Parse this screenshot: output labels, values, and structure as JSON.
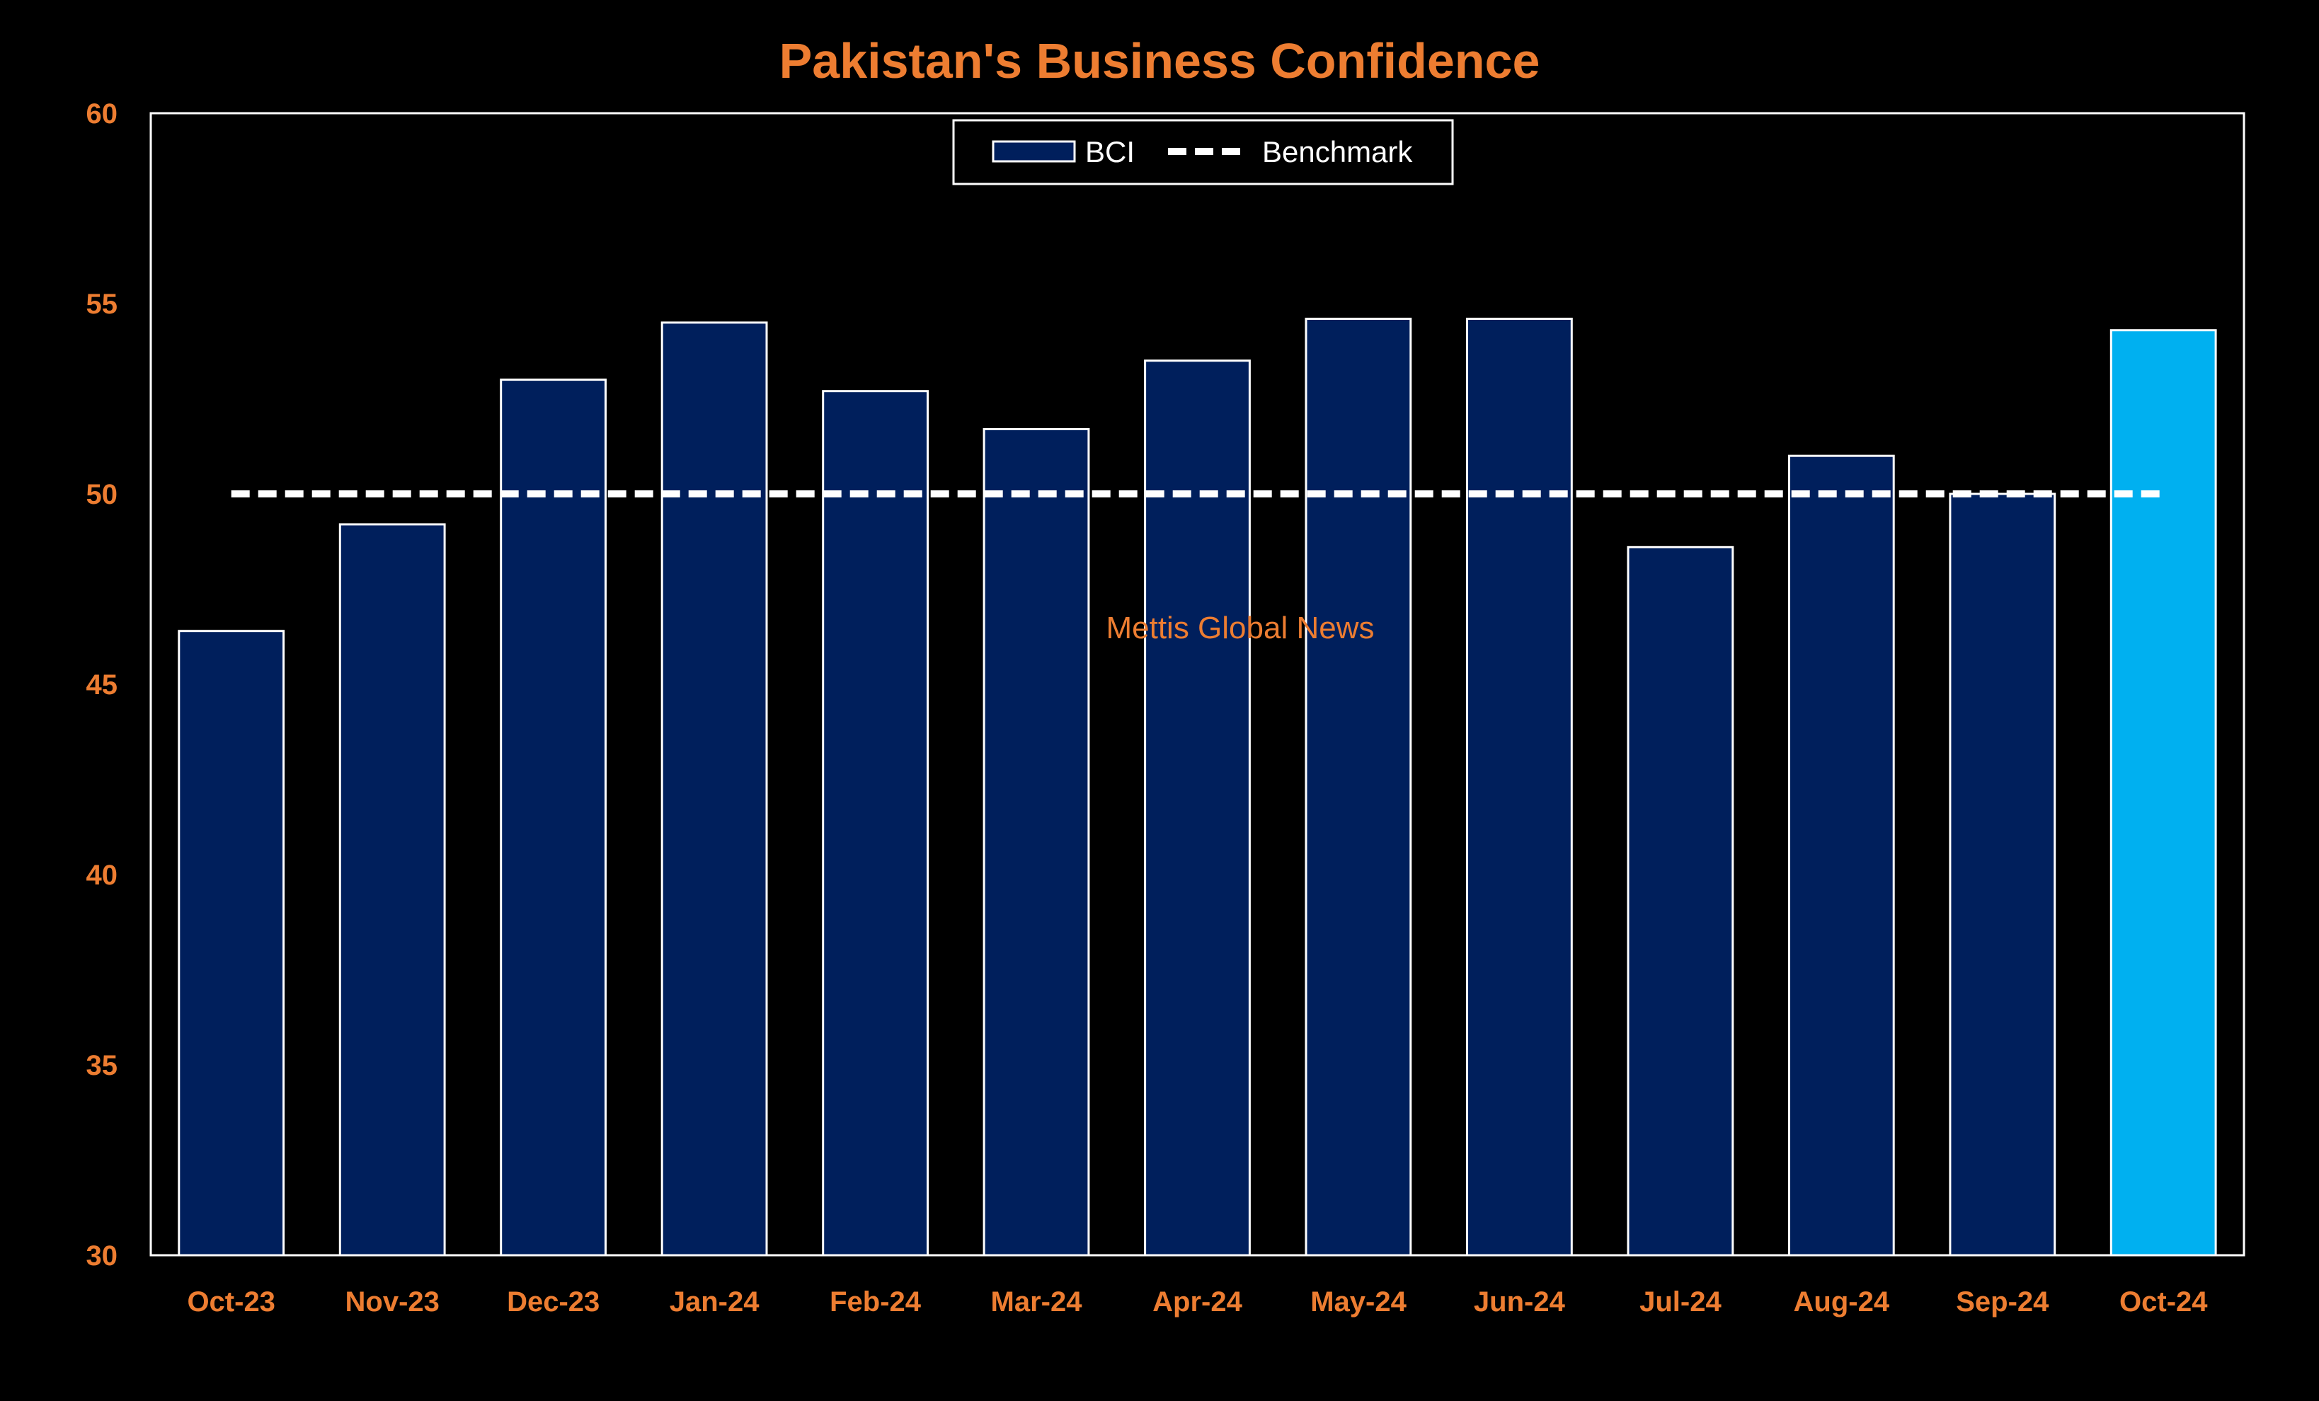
{
  "colors": {
    "background": "#000000",
    "accent_text": "#ED7D31",
    "bar_default": "#001F5C",
    "bar_highlight": "#00B0F0",
    "bar_outline": "#FFFFFF",
    "benchmark_line": "#FFFFFF",
    "frame": "#FFFFFF"
  },
  "watermark": "Mettis Global News",
  "chart_data": {
    "type": "bar",
    "title": "Pakistan's Business Confidence",
    "xlabel": "",
    "ylabel": "",
    "ylim": [
      30,
      60
    ],
    "yticks": [
      30,
      35,
      40,
      45,
      50,
      55,
      60
    ],
    "grid": false,
    "legend_position": "top-center",
    "categories": [
      "Oct-23",
      "Nov-23",
      "Dec-23",
      "Jan-24",
      "Feb-24",
      "Mar-24",
      "Apr-24",
      "May-24",
      "Jun-24",
      "Jul-24",
      "Aug-24",
      "Sep-24",
      "Oct-24"
    ],
    "series": [
      {
        "name": "BCI",
        "kind": "bar",
        "values": [
          46.4,
          49.2,
          53.0,
          54.5,
          52.7,
          51.7,
          53.5,
          54.6,
          54.6,
          48.6,
          51.0,
          50.0,
          54.3
        ],
        "highlight_index": 12
      },
      {
        "name": "Benchmark",
        "kind": "dashed-line",
        "values": [
          50,
          50,
          50,
          50,
          50,
          50,
          50,
          50,
          50,
          50,
          50,
          50,
          50
        ]
      }
    ]
  }
}
